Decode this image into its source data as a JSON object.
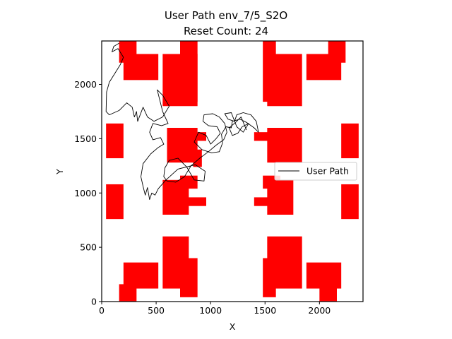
{
  "chart_data": {
    "type": "line",
    "title_line1": "User Path env_7/5_S2O",
    "title_line2": "Reset Count: 24",
    "xlabel": "X",
    "ylabel": "Y",
    "xlim": [
      0,
      2400
    ],
    "ylim": [
      0,
      2400
    ],
    "xticks": [
      0,
      500,
      1000,
      1500,
      2000
    ],
    "yticks": [
      0,
      500,
      1000,
      1500,
      2000
    ],
    "grid": false,
    "legend": {
      "position": "right",
      "entries": [
        "User Path"
      ]
    },
    "obstacle_color": "#ff0000",
    "path_color": "#000000",
    "obstacles": [
      [
        160,
        0,
        160,
        160
      ],
      [
        200,
        120,
        320,
        240
      ],
      [
        560,
        120,
        240,
        480
      ],
      [
        720,
        40,
        160,
        360
      ],
      [
        1480,
        40,
        120,
        360
      ],
      [
        1520,
        120,
        320,
        480
      ],
      [
        1880,
        120,
        320,
        240
      ],
      [
        2000,
        0,
        160,
        160
      ],
      [
        40,
        760,
        160,
        320
      ],
      [
        560,
        800,
        240,
        320
      ],
      [
        760,
        880,
        200,
        80
      ],
      [
        720,
        1040,
        160,
        120
      ],
      [
        1400,
        880,
        200,
        80
      ],
      [
        1480,
        1040,
        160,
        120
      ],
      [
        1520,
        800,
        240,
        320
      ],
      [
        2200,
        760,
        160,
        320
      ],
      [
        40,
        1320,
        160,
        320
      ],
      [
        600,
        1280,
        280,
        320
      ],
      [
        760,
        1480,
        200,
        80
      ],
      [
        840,
        1240,
        80,
        160
      ],
      [
        1400,
        1480,
        200,
        80
      ],
      [
        1520,
        1280,
        320,
        320
      ],
      [
        2200,
        1320,
        160,
        320
      ],
      [
        560,
        1800,
        320,
        480
      ],
      [
        720,
        1840,
        160,
        560
      ],
      [
        1520,
        1800,
        320,
        480
      ],
      [
        1480,
        1840,
        120,
        560
      ],
      [
        200,
        2040,
        320,
        240
      ],
      [
        160,
        2200,
        160,
        200
      ],
      [
        1880,
        2040,
        320,
        240
      ],
      [
        2080,
        2200,
        160,
        200
      ]
    ],
    "path": [
      [
        160,
        2380
      ],
      [
        110,
        2350
      ],
      [
        95,
        2300
      ],
      [
        150,
        2330
      ],
      [
        200,
        2250
      ],
      [
        170,
        2180
      ],
      [
        120,
        2100
      ],
      [
        70,
        2020
      ],
      [
        45,
        1930
      ],
      [
        40,
        1750
      ],
      [
        70,
        1720
      ],
      [
        160,
        1760
      ],
      [
        230,
        1830
      ],
      [
        280,
        1790
      ],
      [
        300,
        1700
      ],
      [
        320,
        1750
      ],
      [
        330,
        1660
      ],
      [
        380,
        1790
      ],
      [
        420,
        1700
      ],
      [
        480,
        1660
      ],
      [
        560,
        1700
      ],
      [
        620,
        1800
      ],
      [
        560,
        1900
      ],
      [
        510,
        1950
      ],
      [
        560,
        1750
      ],
      [
        610,
        1640
      ],
      [
        550,
        1620
      ],
      [
        470,
        1640
      ],
      [
        440,
        1560
      ],
      [
        470,
        1490
      ],
      [
        540,
        1510
      ],
      [
        570,
        1450
      ],
      [
        520,
        1420
      ],
      [
        450,
        1360
      ],
      [
        380,
        1270
      ],
      [
        360,
        1150
      ],
      [
        380,
        1060
      ],
      [
        400,
        980
      ],
      [
        420,
        1050
      ],
      [
        440,
        940
      ],
      [
        460,
        1000
      ],
      [
        490,
        980
      ],
      [
        520,
        1040
      ],
      [
        590,
        1120
      ],
      [
        700,
        1220
      ],
      [
        860,
        1260
      ],
      [
        950,
        1200
      ],
      [
        940,
        1110
      ],
      [
        850,
        1120
      ],
      [
        780,
        1240
      ],
      [
        700,
        1320
      ],
      [
        620,
        1300
      ],
      [
        580,
        1230
      ],
      [
        570,
        1150
      ],
      [
        600,
        1110
      ],
      [
        680,
        1100
      ],
      [
        760,
        1150
      ],
      [
        820,
        1250
      ],
      [
        900,
        1320
      ],
      [
        980,
        1380
      ],
      [
        1050,
        1440
      ],
      [
        1120,
        1490
      ],
      [
        1150,
        1560
      ],
      [
        1130,
        1640
      ],
      [
        1080,
        1700
      ],
      [
        1020,
        1730
      ],
      [
        940,
        1720
      ],
      [
        930,
        1660
      ],
      [
        980,
        1620
      ],
      [
        1060,
        1610
      ],
      [
        1090,
        1550
      ],
      [
        1050,
        1500
      ],
      [
        1000,
        1450
      ],
      [
        960,
        1530
      ],
      [
        890,
        1560
      ],
      [
        850,
        1470
      ],
      [
        920,
        1400
      ],
      [
        1010,
        1370
      ],
      [
        1080,
        1380
      ],
      [
        1110,
        1460
      ],
      [
        1100,
        1540
      ],
      [
        1140,
        1610
      ],
      [
        1190,
        1600
      ],
      [
        1200,
        1660
      ],
      [
        1270,
        1680
      ],
      [
        1330,
        1650
      ],
      [
        1400,
        1600
      ],
      [
        1440,
        1560
      ],
      [
        1420,
        1660
      ],
      [
        1370,
        1720
      ],
      [
        1300,
        1740
      ],
      [
        1240,
        1720
      ],
      [
        1220,
        1660
      ],
      [
        1160,
        1680
      ],
      [
        1130,
        1730
      ],
      [
        1190,
        1740
      ],
      [
        1240,
        1610
      ],
      [
        1300,
        1560
      ],
      [
        1350,
        1640
      ],
      [
        1290,
        1610
      ],
      [
        1250,
        1550
      ],
      [
        1200,
        1530
      ],
      [
        1170,
        1600
      ],
      [
        1230,
        1650
      ],
      [
        1280,
        1700
      ],
      [
        1330,
        1580
      ]
    ]
  }
}
